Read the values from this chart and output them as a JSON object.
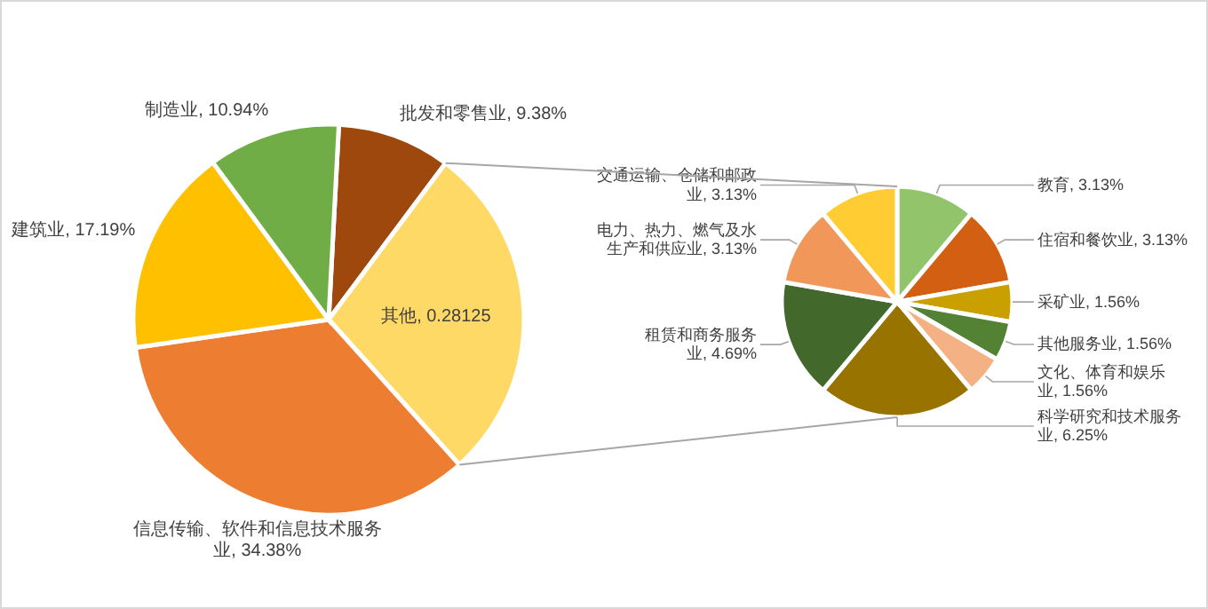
{
  "chart_data": [
    {
      "type": "pie",
      "categories": [
        "批发和零售业",
        "其他",
        "信息传输、软件和信息技术服务业",
        "建筑业",
        "制造业"
      ],
      "values": [
        0.0938,
        0.28125,
        0.3438,
        0.1719,
        0.1094
      ],
      "value_labels": [
        "9.38%",
        "0.28125",
        "34.38%",
        "17.19%",
        "10.94%"
      ],
      "colors": [
        "#9e480e",
        "#ffd966",
        "#ed7d31",
        "#ffc000",
        "#70ad47"
      ]
    },
    {
      "type": "pie",
      "categories": [
        "教育",
        "住宿和餐饮业",
        "采矿业",
        "其他服务业",
        "文化、体育和娱乐业",
        "科学研究和技术服务业",
        "租赁和商务服务业",
        "电力、热力、燃气及水生产和供应业",
        "交通运输、仓储和邮政业"
      ],
      "values": [
        3.13,
        3.13,
        1.56,
        1.56,
        1.56,
        6.25,
        4.69,
        3.13,
        3.13
      ],
      "value_labels": [
        "3.13%",
        "3.13%",
        "1.56%",
        "1.56%",
        "1.56%",
        "6.25%",
        "4.69%",
        "3.13%",
        "3.13%"
      ],
      "colors": [
        "#91c46b",
        "#d35f13",
        "#c9a000",
        "#548235",
        "#f4b183",
        "#997300",
        "#43682b",
        "#f1975a",
        "#ffcd33"
      ]
    }
  ]
}
